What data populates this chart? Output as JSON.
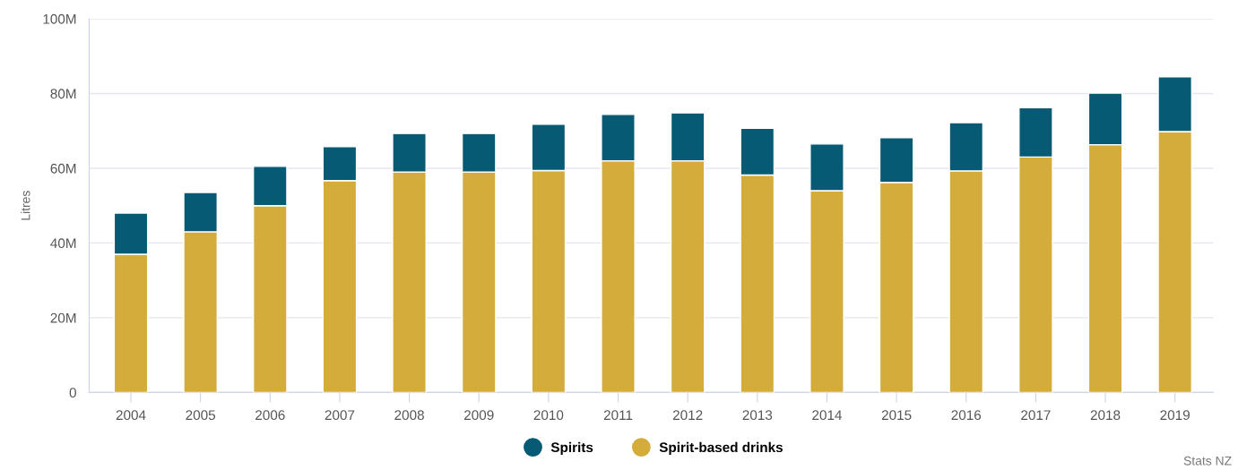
{
  "chart_data": {
    "type": "bar",
    "stacked": true,
    "ylabel": "Litres",
    "categories": [
      "2004",
      "2005",
      "2006",
      "2007",
      "2008",
      "2009",
      "2010",
      "2011",
      "2012",
      "2013",
      "2014",
      "2015",
      "2016",
      "2017",
      "2018",
      "2019"
    ],
    "series": [
      {
        "name": "Spirit-based drinks",
        "color": "#d4ac3c",
        "values": [
          37,
          43,
          50,
          56.7,
          59,
          59,
          59.4,
          62,
          62,
          58.2,
          54,
          56.2,
          59.3,
          63,
          66.3,
          69.8
        ]
      },
      {
        "name": "Spirits",
        "color": "#075a73",
        "values": [
          11,
          10.5,
          10.5,
          9.1,
          10.3,
          10.3,
          12.4,
          12.4,
          12.8,
          12.5,
          12.5,
          12,
          12.9,
          13.2,
          13.8,
          14.7
        ]
      }
    ],
    "ylim": [
      0,
      100
    ],
    "yticks": [
      {
        "value": 0,
        "label": "0"
      },
      {
        "value": 20,
        "label": "20M"
      },
      {
        "value": 40,
        "label": "40M"
      },
      {
        "value": 60,
        "label": "60M"
      },
      {
        "value": 80,
        "label": "80M"
      },
      {
        "value": 100,
        "label": "100M"
      }
    ],
    "grid": "y",
    "legend": "bottom",
    "annotations": [
      "Stats NZ"
    ]
  }
}
